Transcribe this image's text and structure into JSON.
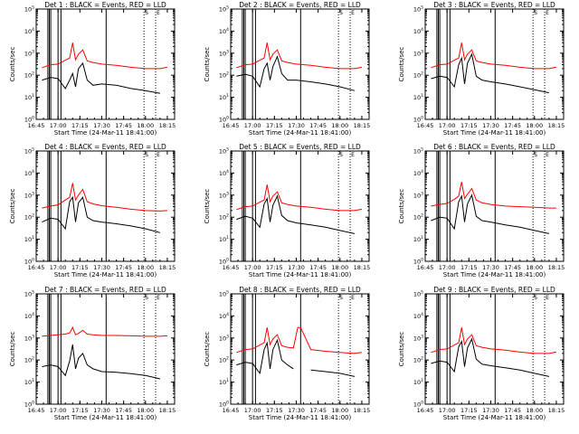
{
  "chart_data": {
    "type": "line",
    "shared": {
      "xlabel": "Start Time (24-Mar-11 18:41:00)",
      "ylabel": "Counts/sec",
      "xticks": [
        "16:45",
        "17:00",
        "17:15",
        "17:30",
        "17:45",
        "18:00",
        "18:15"
      ],
      "xlim": [
        "16:45",
        "18:20"
      ],
      "ylim": [
        1,
        100000
      ],
      "yscale": "log",
      "yticks": [
        "10^0",
        "10^1",
        "10^2",
        "10^3",
        "10^4",
        "10^5"
      ],
      "colors": {
        "events": "#000000",
        "lld": "#ff0000"
      },
      "markers": {
        "solid": [
          "16:53",
          "16:54",
          "16:55",
          "17:00",
          "17:02",
          "17:33"
        ],
        "dotted": [
          "17:59",
          "18:07"
        ]
      },
      "top_labels": [
        "S",
        "E"
      ]
    },
    "panels": [
      {
        "title": "Det 1 : BLACK = Events, RED = LLD",
        "x": [
          "16:49",
          "16:55",
          "17:00",
          "17:05",
          "17:08",
          "17:10",
          "17:12",
          "17:14",
          "17:17",
          "17:20",
          "17:24",
          "17:30",
          "17:40",
          "17:50",
          "18:00",
          "18:10",
          "18:15"
        ],
        "series": [
          {
            "name": "Events",
            "values": [
              60,
              80,
              70,
              25,
              60,
              120,
              30,
              200,
              350,
              60,
              35,
              40,
              35,
              25,
              20,
              15,
              null
            ]
          },
          {
            "name": "LLD",
            "values": [
              220,
              300,
              320,
              480,
              600,
              3000,
              500,
              900,
              1400,
              450,
              380,
              320,
              280,
              230,
              200,
              200,
              230
            ]
          }
        ]
      },
      {
        "title": "Det 2 : BLACK = Events, RED = LLD",
        "x": [
          "16:49",
          "16:55",
          "17:00",
          "17:05",
          "17:08",
          "17:10",
          "17:12",
          "17:14",
          "17:17",
          "17:20",
          "17:24",
          "17:30",
          "17:40",
          "17:50",
          "18:00",
          "18:10",
          "18:15"
        ],
        "series": [
          {
            "name": "Events",
            "values": [
              90,
              110,
              90,
              30,
              200,
              350,
              60,
              250,
              700,
              120,
              60,
              60,
              50,
              40,
              30,
              20,
              null
            ]
          },
          {
            "name": "LLD",
            "values": [
              220,
              300,
              320,
              480,
              600,
              3000,
              500,
              900,
              1400,
              450,
              380,
              320,
              280,
              230,
              200,
              200,
              230
            ]
          }
        ]
      },
      {
        "title": "Det 3 : BLACK = Events, RED = LLD",
        "x": [
          "16:49",
          "16:55",
          "17:00",
          "17:05",
          "17:08",
          "17:10",
          "17:12",
          "17:14",
          "17:17",
          "17:20",
          "17:24",
          "17:30",
          "17:40",
          "17:50",
          "18:00",
          "18:10",
          "18:15"
        ],
        "series": [
          {
            "name": "Events",
            "values": [
              70,
              90,
              80,
              30,
              300,
              600,
              40,
              350,
              900,
              90,
              60,
              50,
              40,
              30,
              22,
              16,
              null
            ]
          },
          {
            "name": "LLD",
            "values": [
              220,
              300,
              320,
              480,
              600,
              3000,
              500,
              900,
              1400,
              450,
              380,
              320,
              280,
              230,
              200,
              200,
              230
            ]
          }
        ]
      },
      {
        "title": "Det 4 : BLACK = Events, RED = LLD",
        "x": [
          "16:49",
          "16:55",
          "17:00",
          "17:05",
          "17:08",
          "17:10",
          "17:12",
          "17:14",
          "17:17",
          "17:20",
          "17:24",
          "17:30",
          "17:40",
          "17:50",
          "18:00",
          "18:10",
          "18:15"
        ],
        "series": [
          {
            "name": "Events",
            "values": [
              60,
              90,
              80,
              30,
              500,
              800,
              60,
              450,
              800,
              100,
              70,
              60,
              50,
              40,
              30,
              20,
              null
            ]
          },
          {
            "name": "LLD",
            "values": [
              260,
              320,
              360,
              600,
              800,
              3500,
              600,
              1000,
              1800,
              500,
              400,
              330,
              280,
              230,
              200,
              190,
              200
            ]
          }
        ]
      },
      {
        "title": "Det 5 : BLACK = Events, RED = LLD",
        "x": [
          "16:49",
          "16:55",
          "17:00",
          "17:05",
          "17:08",
          "17:10",
          "17:12",
          "17:14",
          "17:17",
          "17:20",
          "17:24",
          "17:30",
          "17:40",
          "17:50",
          "18:00",
          "18:10",
          "18:15"
        ],
        "series": [
          {
            "name": "Events",
            "values": [
              80,
              110,
              90,
              35,
              400,
              700,
              60,
              350,
              900,
              120,
              70,
              55,
              45,
              35,
              25,
              18,
              null
            ]
          },
          {
            "name": "LLD",
            "values": [
              220,
              300,
              320,
              480,
              600,
              3000,
              500,
              900,
              1400,
              450,
              380,
              320,
              280,
              230,
              200,
              200,
              230
            ]
          }
        ]
      },
      {
        "title": "Det 6 : BLACK = Events, RED = LLD",
        "x": [
          "16:49",
          "16:55",
          "17:00",
          "17:05",
          "17:08",
          "17:10",
          "17:12",
          "17:14",
          "17:17",
          "17:20",
          "17:24",
          "17:30",
          "17:40",
          "17:50",
          "18:00",
          "18:10",
          "18:15"
        ],
        "series": [
          {
            "name": "Events",
            "values": [
              70,
              100,
              90,
              30,
              500,
              900,
              60,
              400,
              1000,
              110,
              70,
              60,
              45,
              35,
              25,
              18,
              null
            ]
          },
          {
            "name": "LLD",
            "values": [
              320,
              380,
              420,
              650,
              900,
              4000,
              700,
              1100,
              2000,
              600,
              450,
              380,
              320,
              300,
              280,
              260,
              260
            ]
          }
        ]
      },
      {
        "title": "Det 7 : BLACK = Events, RED = LLD",
        "x": [
          "16:49",
          "16:55",
          "17:00",
          "17:05",
          "17:08",
          "17:10",
          "17:12",
          "17:14",
          "17:17",
          "17:20",
          "17:24",
          "17:30",
          "17:40",
          "17:50",
          "18:00",
          "18:10",
          "18:15"
        ],
        "series": [
          {
            "name": "Events",
            "values": [
              50,
              60,
              50,
              20,
              90,
              500,
              40,
              120,
              200,
              60,
              40,
              30,
              28,
              24,
              20,
              14,
              null
            ]
          },
          {
            "name": "LLD",
            "values": [
              1200,
              1300,
              1400,
              1500,
              1700,
              3000,
              1400,
              1600,
              2200,
              1500,
              1400,
              1300,
              1300,
              1250,
              1200,
              1200,
              1250
            ]
          }
        ]
      },
      {
        "title": "Det 8 : BLACK = Events, RED = LLD",
        "x": [
          "16:49",
          "16:55",
          "17:00",
          "17:05",
          "17:08",
          "17:10",
          "17:12",
          "17:14",
          "17:17",
          "17:20",
          "17:24",
          "17:28",
          "17:31",
          "17:33",
          "17:40",
          "17:50",
          "18:00",
          "18:10",
          "18:15"
        ],
        "series": [
          {
            "name": "Events",
            "values": [
              60,
              80,
              70,
              25,
              300,
              600,
              40,
              300,
              800,
              100,
              60,
              40,
              null,
              null,
              35,
              30,
              25,
              18,
              null
            ]
          },
          {
            "name": "LLD",
            "values": [
              220,
              300,
              320,
              480,
              600,
              3000,
              500,
              900,
              1400,
              450,
              380,
              350,
              3000,
              3000,
              300,
              250,
              220,
              200,
              220
            ]
          }
        ]
      },
      {
        "title": "Det 9 : BLACK = Events, RED = LLD",
        "x": [
          "16:49",
          "16:55",
          "17:00",
          "17:05",
          "17:08",
          "17:10",
          "17:12",
          "17:14",
          "17:17",
          "17:20",
          "17:24",
          "17:30",
          "17:40",
          "17:50",
          "18:00",
          "18:10",
          "18:15"
        ],
        "series": [
          {
            "name": "Events",
            "values": [
              70,
              90,
              80,
              30,
              400,
              700,
              50,
              350,
              900,
              110,
              65,
              55,
              45,
              35,
              25,
              18,
              null
            ]
          },
          {
            "name": "LLD",
            "values": [
              220,
              300,
              320,
              480,
              600,
              3000,
              500,
              900,
              1400,
              450,
              380,
              320,
              280,
              230,
              200,
              200,
              230
            ]
          }
        ]
      }
    ]
  }
}
